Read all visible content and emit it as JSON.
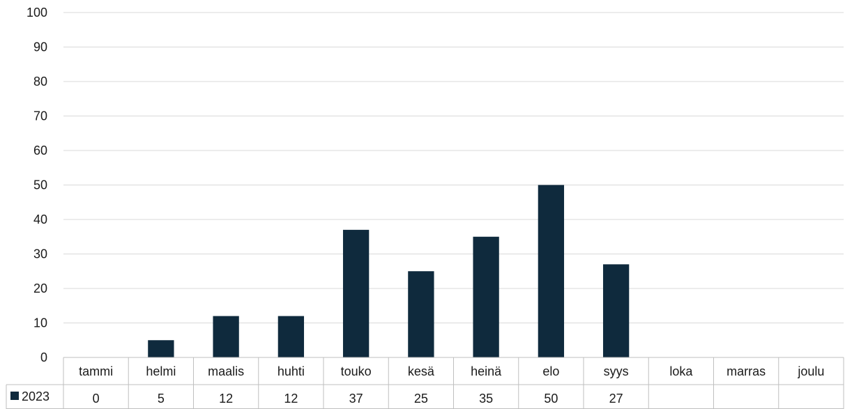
{
  "chart_data": {
    "type": "bar",
    "categories": [
      "tammi",
      "helmi",
      "maalis",
      "huhti",
      "touko",
      "kesä",
      "heinä",
      "elo",
      "syys",
      "loka",
      "marras",
      "joulu"
    ],
    "series": [
      {
        "name": "2023",
        "values": [
          0,
          5,
          12,
          12,
          37,
          25,
          35,
          50,
          27,
          null,
          null,
          null
        ],
        "color": "#0f2a3d"
      }
    ],
    "table_values": [
      "0",
      "5",
      "12",
      "12",
      "37",
      "25",
      "35",
      "50",
      "27",
      "",
      "",
      ""
    ],
    "y_ticks": [
      "0",
      "10",
      "20",
      "30",
      "40",
      "50",
      "60",
      "70",
      "80",
      "90",
      "100"
    ],
    "ylim": [
      0,
      100
    ],
    "grid": true,
    "legend": "data-table",
    "title": "",
    "xlabel": "",
    "ylabel": "",
    "colors": {
      "bar": "#0f2a3d",
      "grid": "#d9d9d9",
      "table_border": "#bfbfbf"
    }
  }
}
